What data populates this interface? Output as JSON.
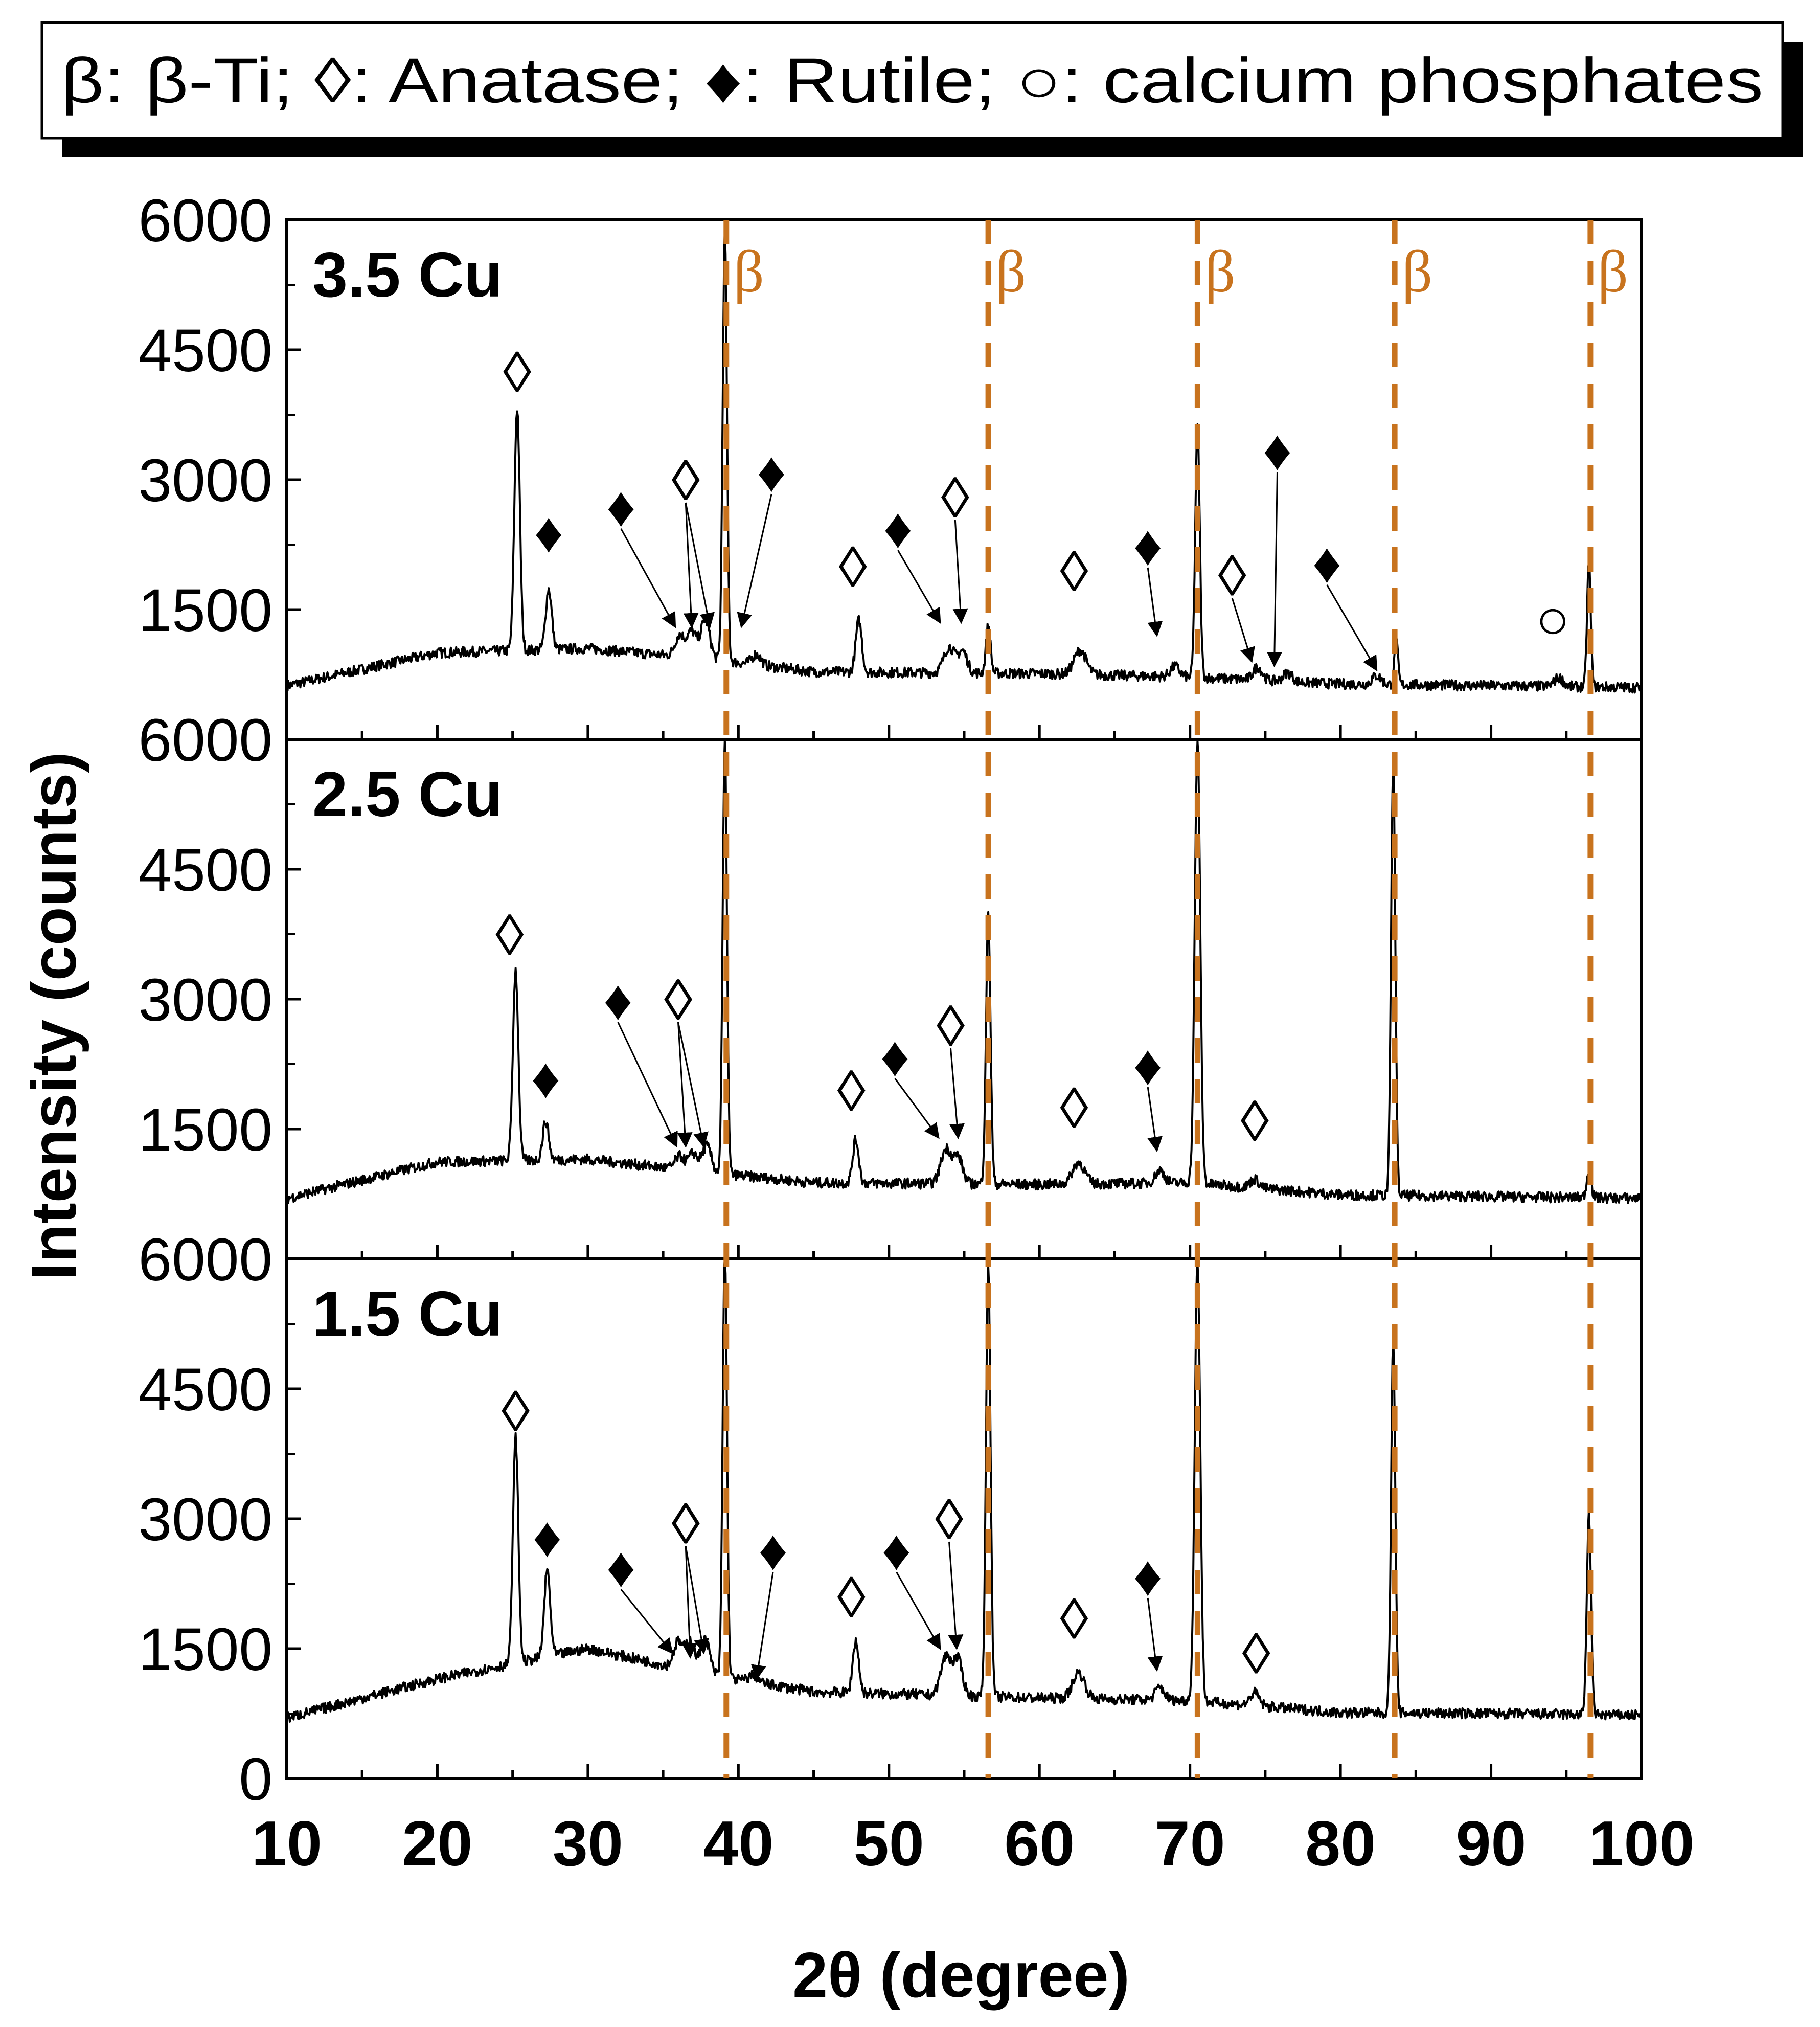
{
  "chart_data": {
    "type": "line",
    "title": "",
    "legend": {
      "text": "β: β-Ti; ◊: Anatase; ♦: Rutile; ○: calcium phosphates",
      "placement": "top"
    },
    "xlabel": "2θ (degree)",
    "ylabel": "Intensity (counts)",
    "xlim": [
      10,
      100
    ],
    "ylim": [
      0,
      6000
    ],
    "xticks": [
      "10",
      "20",
      "30",
      "40",
      "50",
      "60",
      "70",
      "80",
      "90",
      "100"
    ],
    "yticks": [
      "0",
      "1500",
      "3000",
      "4500",
      "6000"
    ],
    "beta_lines": [
      39.2,
      56.6,
      70.5,
      83.6,
      96.6
    ],
    "beta_label": "β",
    "colors": {
      "beta": "#c8731e",
      "line": "#000000",
      "frame": "#000000"
    },
    "series": [
      {
        "name": "3.5 Cu",
        "baseline": [
          [
            10,
            620
          ],
          [
            20,
            1000
          ],
          [
            30,
            1050
          ],
          [
            38,
            930
          ],
          [
            45,
            780
          ],
          [
            60,
            760
          ],
          [
            70,
            720
          ],
          [
            80,
            640
          ],
          [
            90,
            620
          ],
          [
            100,
            600
          ]
        ],
        "peaks": [
          [
            25.3,
            2800,
            0.18
          ],
          [
            27.4,
            700,
            0.2
          ],
          [
            36.1,
            250,
            0.3
          ],
          [
            36.9,
            300,
            0.3
          ],
          [
            37.8,
            450,
            0.3
          ],
          [
            39.1,
            4950,
            0.14
          ],
          [
            41.2,
            120,
            0.3
          ],
          [
            48.0,
            600,
            0.2
          ],
          [
            54.0,
            300,
            0.35
          ],
          [
            54.9,
            250,
            0.3
          ],
          [
            56.6,
            550,
            0.15
          ],
          [
            62.7,
            280,
            0.4
          ],
          [
            69.0,
            120,
            0.3
          ],
          [
            70.5,
            2900,
            0.15
          ],
          [
            74.5,
            150,
            0.3
          ],
          [
            76.5,
            100,
            0.3
          ],
          [
            82.4,
            100,
            0.3
          ],
          [
            83.7,
            500,
            0.12
          ],
          [
            94.5,
            100,
            0.3
          ],
          [
            96.5,
            1450,
            0.12
          ]
        ],
        "markers": [
          {
            "symbol": "◊",
            "x": 25.3,
            "y": 4250
          },
          {
            "symbol": "♦",
            "x": 27.4,
            "y": 2400
          },
          {
            "symbol": "♦",
            "x": 32.2,
            "y": 2700,
            "tx": 35.8,
            "ty": 1300
          },
          {
            "symbol": "◊",
            "x": 36.5,
            "y": 3000,
            "tx": 36.9,
            "ty": 1300
          },
          {
            "symbol": "◊",
            "x": 36.5,
            "y": 3000,
            "tx": 38.1,
            "ty": 1300
          },
          {
            "symbol": "♦",
            "x": 42.2,
            "y": 3100,
            "tx": 40.2,
            "ty": 1300
          },
          {
            "symbol": "◊",
            "x": 47.6,
            "y": 2000
          },
          {
            "symbol": "♦",
            "x": 50.6,
            "y": 2450,
            "tx": 53.4,
            "ty": 1350
          },
          {
            "symbol": "◊",
            "x": 54.4,
            "y": 2800,
            "tx": 54.8,
            "ty": 1350
          },
          {
            "symbol": "◊",
            "x": 62.3,
            "y": 1950
          },
          {
            "symbol": "♦",
            "x": 67.2,
            "y": 2250,
            "tx": 67.8,
            "ty": 1200
          },
          {
            "symbol": "◊",
            "x": 72.8,
            "y": 1900,
            "tx": 74.1,
            "ty": 900
          },
          {
            "symbol": "♦",
            "x": 75.8,
            "y": 3350,
            "tx": 75.6,
            "ty": 850
          },
          {
            "symbol": "♦",
            "x": 79.1,
            "y": 2050,
            "tx": 82.4,
            "ty": 800
          },
          {
            "symbol": "○",
            "x": 94.1,
            "y": 1400
          }
        ]
      },
      {
        "name": "2.5 Cu",
        "baseline": [
          [
            10,
            700
          ],
          [
            20,
            1120
          ],
          [
            30,
            1150
          ],
          [
            38,
            1000
          ],
          [
            45,
            880
          ],
          [
            60,
            860
          ],
          [
            70,
            880
          ],
          [
            80,
            740
          ],
          [
            90,
            720
          ],
          [
            100,
            700
          ]
        ],
        "peaks": [
          [
            25.2,
            2200,
            0.18
          ],
          [
            27.2,
            450,
            0.2
          ],
          [
            36.1,
            150,
            0.3
          ],
          [
            37.0,
            200,
            0.3
          ],
          [
            37.9,
            300,
            0.3
          ],
          [
            39.1,
            5000,
            0.14
          ],
          [
            47.8,
            500,
            0.2
          ],
          [
            53.8,
            400,
            0.35
          ],
          [
            54.6,
            300,
            0.3
          ],
          [
            56.6,
            3100,
            0.15
          ],
          [
            62.6,
            250,
            0.4
          ],
          [
            68.0,
            150,
            0.3
          ],
          [
            70.5,
            5100,
            0.18
          ],
          [
            74.3,
            100,
            0.3
          ],
          [
            83.5,
            5000,
            0.14
          ],
          [
            96.5,
            300,
            0.15
          ]
        ],
        "markers": [
          {
            "symbol": "◊",
            "x": 24.8,
            "y": 3750
          },
          {
            "symbol": "♦",
            "x": 27.2,
            "y": 2100
          },
          {
            "symbol": "♦",
            "x": 32.0,
            "y": 3000,
            "tx": 35.9,
            "ty": 1300
          },
          {
            "symbol": "◊",
            "x": 36.0,
            "y": 3000,
            "tx": 36.5,
            "ty": 1300
          },
          {
            "symbol": "◊",
            "x": 36.0,
            "y": 3000,
            "tx": 37.7,
            "ty": 1300
          },
          {
            "symbol": "◊",
            "x": 47.5,
            "y": 1950
          },
          {
            "symbol": "♦",
            "x": 50.4,
            "y": 2350,
            "tx": 53.3,
            "ty": 1400
          },
          {
            "symbol": "◊",
            "x": 54.1,
            "y": 2700,
            "tx": 54.6,
            "ty": 1400
          },
          {
            "symbol": "◊",
            "x": 62.3,
            "y": 1750
          },
          {
            "symbol": "♦",
            "x": 67.2,
            "y": 2250,
            "tx": 67.8,
            "ty": 1250
          },
          {
            "symbol": "◊",
            "x": 74.3,
            "y": 1600
          }
        ]
      },
      {
        "name": "1.5 Cu",
        "baseline": [
          [
            10,
            700
          ],
          [
            20,
            1150
          ],
          [
            30,
            1500
          ],
          [
            38,
            1200
          ],
          [
            45,
            1000
          ],
          [
            60,
            930
          ],
          [
            70,
            900
          ],
          [
            80,
            760
          ],
          [
            90,
            750
          ],
          [
            100,
            730
          ]
        ],
        "peaks": [
          [
            25.2,
            2600,
            0.18
          ],
          [
            27.3,
            1000,
            0.2
          ],
          [
            36.0,
            300,
            0.3
          ],
          [
            36.8,
            350,
            0.3
          ],
          [
            37.8,
            400,
            0.3
          ],
          [
            39.1,
            5000,
            0.14
          ],
          [
            41.0,
            80,
            0.3
          ],
          [
            47.8,
            600,
            0.2
          ],
          [
            53.8,
            450,
            0.35
          ],
          [
            54.6,
            400,
            0.3
          ],
          [
            56.6,
            5000,
            0.15
          ],
          [
            62.6,
            300,
            0.4
          ],
          [
            68.0,
            150,
            0.3
          ],
          [
            70.5,
            5100,
            0.18
          ],
          [
            74.3,
            150,
            0.3
          ],
          [
            83.5,
            4300,
            0.14
          ],
          [
            96.5,
            2300,
            0.14
          ]
        ],
        "markers": [
          {
            "symbol": "◊",
            "x": 25.2,
            "y": 4250
          },
          {
            "symbol": "♦",
            "x": 27.3,
            "y": 2800
          },
          {
            "symbol": "♦",
            "x": 32.2,
            "y": 2450,
            "tx": 35.6,
            "ty": 1450
          },
          {
            "symbol": "◊",
            "x": 36.5,
            "y": 2950,
            "tx": 36.8,
            "ty": 1400
          },
          {
            "symbol": "◊",
            "x": 36.5,
            "y": 2950,
            "tx": 37.7,
            "ty": 1450
          },
          {
            "symbol": "♦",
            "x": 42.3,
            "y": 2650,
            "tx": 41.2,
            "ty": 1150
          },
          {
            "symbol": "◊",
            "x": 47.5,
            "y": 2100
          },
          {
            "symbol": "♦",
            "x": 50.5,
            "y": 2650,
            "tx": 53.4,
            "ty": 1500
          },
          {
            "symbol": "◊",
            "x": 54.0,
            "y": 3000,
            "tx": 54.5,
            "ty": 1500
          },
          {
            "symbol": "◊",
            "x": 62.3,
            "y": 1850
          },
          {
            "symbol": "♦",
            "x": 67.2,
            "y": 2350,
            "tx": 67.8,
            "ty": 1250
          },
          {
            "symbol": "◊",
            "x": 74.4,
            "y": 1450
          }
        ]
      }
    ]
  }
}
